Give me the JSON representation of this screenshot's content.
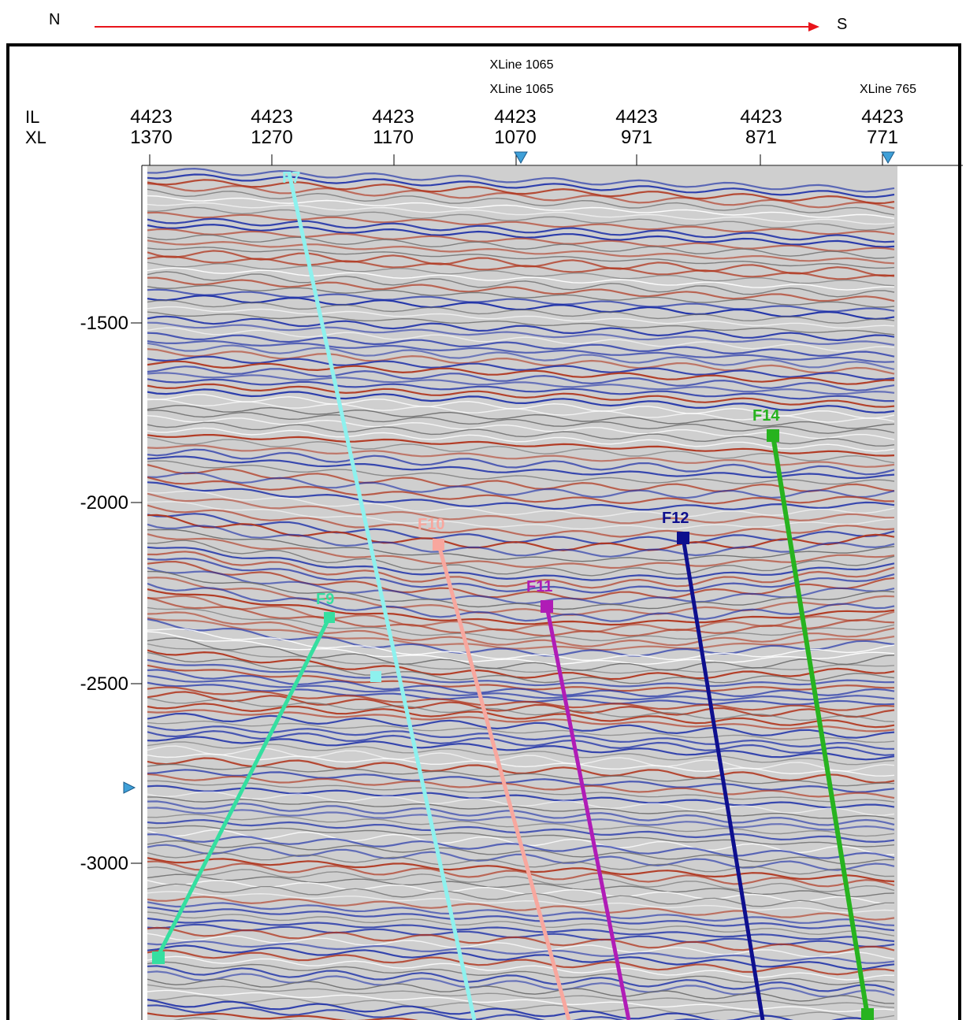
{
  "orientation": {
    "left": "N",
    "right": "S",
    "arrow_color": "#e8141b"
  },
  "header": {
    "il_label": "IL",
    "xl_label": "XL",
    "columns": [
      {
        "il": "4423",
        "xl": "1370",
        "marker": ""
      },
      {
        "il": "4423",
        "xl": "1270",
        "marker": ""
      },
      {
        "il": "4423",
        "xl": "1170",
        "marker": ""
      },
      {
        "il": "4423",
        "xl": "1070",
        "marker": "XLine 1065"
      },
      {
        "il": "4423",
        "xl": "971",
        "marker": ""
      },
      {
        "il": "4423",
        "xl": "871",
        "marker": ""
      },
      {
        "il": "4423",
        "xl": "771",
        "marker": "XLine 765"
      }
    ],
    "top_marker": "XLine 1065"
  },
  "depth_axis": {
    "ticks": [
      "-1500",
      "-2000",
      "-2500",
      "-3000"
    ]
  },
  "faults": [
    {
      "name": "F7",
      "color": "#8ef1ee"
    },
    {
      "name": "F9",
      "color": "#35dfa0"
    },
    {
      "name": "F10",
      "color": "#f8a79e"
    },
    {
      "name": "F11",
      "color": "#b01cb6"
    },
    {
      "name": "F12",
      "color": "#0e0f8e"
    },
    {
      "name": "F14",
      "color": "#27b31f"
    }
  ],
  "colors": {
    "peak": "#1c2fa8",
    "trough": "#b0341c",
    "background": "#cfcfcf"
  }
}
